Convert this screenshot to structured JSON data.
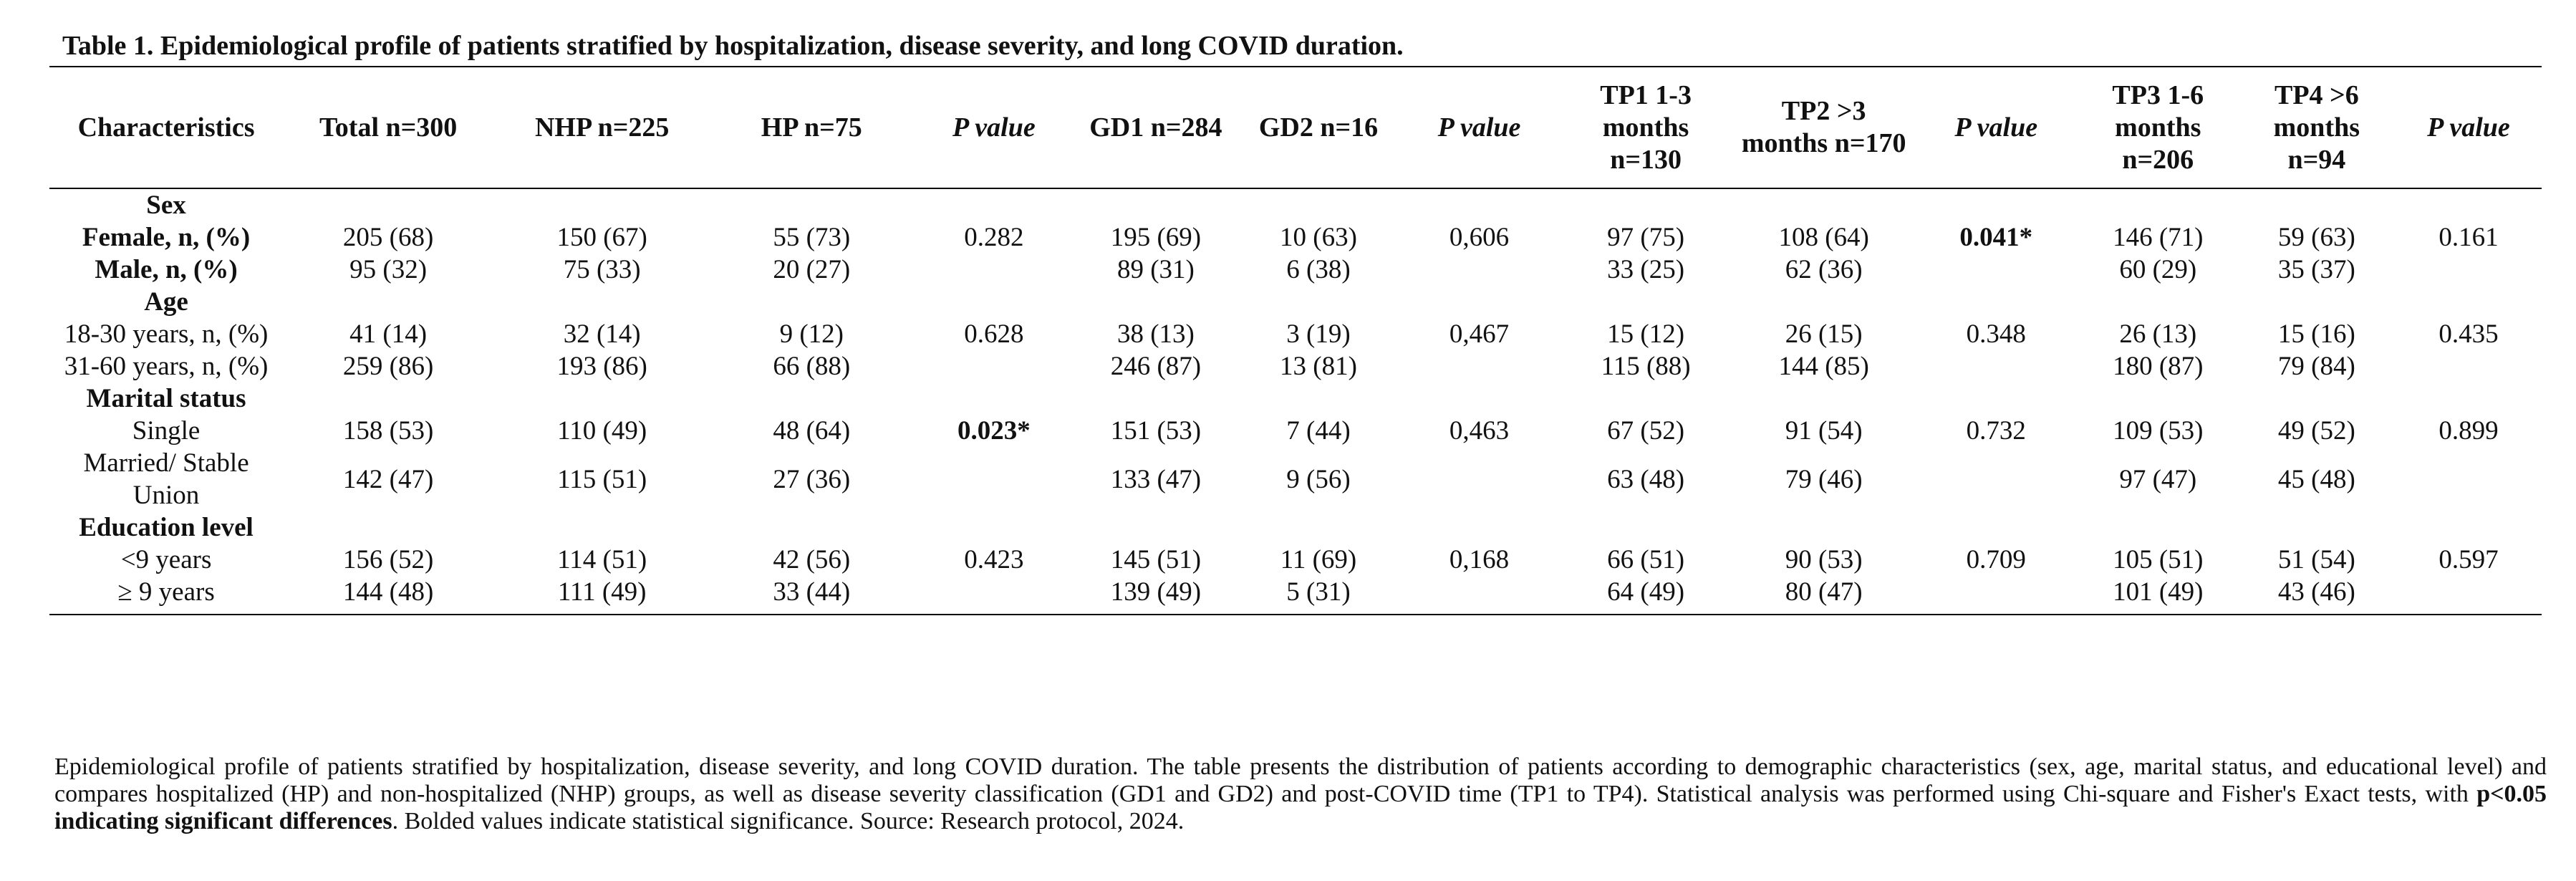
{
  "title": "Table 1. Epidemiological profile of patients stratified by hospitalization, disease severity, and long COVID duration.",
  "table": {
    "header": [
      "Characteristics",
      "Total n=300",
      "NHP n=225",
      "HP n=75",
      "P value",
      "GD1 n=284",
      "GD2 n=16",
      "P value",
      "TP1 1-3 months n=130",
      "TP2 >3 months n=170",
      "P value",
      "TP3 1-6 months n=206",
      "TP4 >6 months n=94",
      "P value"
    ],
    "p_value_columns": [
      4,
      7,
      10,
      13
    ],
    "rows": [
      {
        "section": "Sex"
      },
      {
        "label": "Female, n, (%)",
        "label_bold": true,
        "cells": [
          "205 (68)",
          "150 (67)",
          "55 (73)",
          "0.282",
          "195 (69)",
          "10 (63)",
          "0,606",
          "97 (75)",
          "108 (64)",
          {
            "text": "0.041*",
            "bold": true
          },
          "146 (71)",
          "59 (63)",
          "0.161"
        ]
      },
      {
        "label": "Male, n, (%)",
        "label_bold": true,
        "cells": [
          "95 (32)",
          "75 (33)",
          "20 (27)",
          null,
          "89 (31)",
          "6 (38)",
          null,
          "33 (25)",
          "62 (36)",
          null,
          "60 (29)",
          "35 (37)",
          null
        ]
      },
      {
        "section": "Age"
      },
      {
        "label": "18-30 years, n, (%)",
        "cells": [
          "41 (14)",
          "32 (14)",
          "9 (12)",
          "0.628",
          "38 (13)",
          "3 (19)",
          "0,467",
          "15 (12)",
          "26 (15)",
          "0.348",
          "26 (13)",
          "15 (16)",
          "0.435"
        ]
      },
      {
        "label": "31-60 years, n, (%)",
        "cells": [
          "259 (86)",
          "193 (86)",
          "66 (88)",
          null,
          "246 (87)",
          "13 (81)",
          null,
          "115 (88)",
          "144 (85)",
          null,
          "180 (87)",
          "79 (84)",
          null
        ]
      },
      {
        "section": "Marital status"
      },
      {
        "label": "Single",
        "cells": [
          "158 (53)",
          "110 (49)",
          "48 (64)",
          {
            "text": "0.023*",
            "bold": true
          },
          "151 (53)",
          "7 (44)",
          "0,463",
          "67 (52)",
          "91 (54)",
          "0.732",
          "109 (53)",
          "49 (52)",
          "0.899"
        ]
      },
      {
        "label": "Married/ Stable Union",
        "cells": [
          "142 (47)",
          "115 (51)",
          "27 (36)",
          null,
          "133 (47)",
          "9 (56)",
          null,
          "63 (48)",
          "79 (46)",
          null,
          "97 (47)",
          "45 (48)",
          null
        ]
      },
      {
        "section": "Education level"
      },
      {
        "label": "<9 years",
        "cells": [
          "156 (52)",
          "114 (51)",
          "42 (56)",
          "0.423",
          "145 (51)",
          "11 (69)",
          "0,168",
          "66 (51)",
          "90 (53)",
          "0.709",
          "105 (51)",
          "51 (54)",
          "0.597"
        ]
      },
      {
        "label": "≥ 9 years",
        "cells": [
          "144 (48)",
          "111 (49)",
          "33 (44)",
          null,
          "139 (49)",
          "5 (31)",
          null,
          "64 (49)",
          "80 (47)",
          null,
          "101 (49)",
          "43 (46)",
          null
        ]
      }
    ]
  },
  "caption": {
    "before": "Epidemiological profile of patients stratified by hospitalization, disease severity, and long COVID duration. The table presents the distribution of patients according to demographic characteristics (sex, age, marital status, and educational level) and compares hospitalized (HP) and non-hospitalized (NHP) groups, as well as disease severity classification (GD1 and GD2) and post-COVID time (TP1 to TP4). Statistical analysis was performed using Chi-square and Fisher's Exact tests, with ",
    "bold": "p<0.05 indicating significant differences",
    "after": ". Bolded values indicate statistical significance. Source: Research protocol, 2024."
  }
}
